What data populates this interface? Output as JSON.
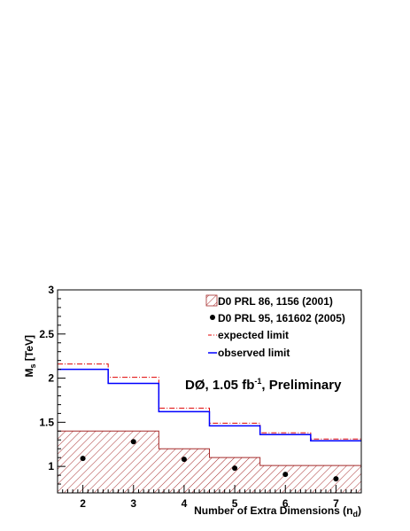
{
  "chart_data": {
    "type": "step",
    "xlabel_main": "Number of Extra Dimensions (n",
    "xlabel_sub": "d",
    "xlabel_close": ")",
    "ylabel_main": "M",
    "ylabel_sub": "s",
    "ylabel_unit": " [TeV]",
    "xlim": [
      1.5,
      7.5
    ],
    "ylim": [
      0.7,
      3.0
    ],
    "x_ticks": [
      "2",
      "3",
      "4",
      "5",
      "6",
      "7"
    ],
    "y_ticks": [
      "1",
      "1.5",
      "2",
      "2.5",
      "3"
    ],
    "annotation_main": "DØ, 1.05 fb",
    "annotation_sup": "-1",
    "annotation_tail": ", Preliminary",
    "legend": [
      {
        "label": "D0 PRL 86, 1156 (2001)",
        "style": "hatched-box"
      },
      {
        "label": "D0 PRL 95, 161602 (2005)",
        "style": "marker"
      },
      {
        "label": "expected limit",
        "style": "dashdot-red"
      },
      {
        "label": "observed limit",
        "style": "solid-blue"
      }
    ],
    "x": [
      2,
      3,
      4,
      5,
      6,
      7
    ],
    "series": [
      {
        "name": "D0 PRL 86, 1156 (2001)",
        "kind": "hatched-step",
        "color": "#a52a2a",
        "values": [
          1.4,
          1.4,
          1.2,
          1.1,
          1.01,
          1.01
        ]
      },
      {
        "name": "D0 PRL 95, 161602 (2005)",
        "kind": "points",
        "color": "#000000",
        "values": [
          1.09,
          1.28,
          1.08,
          0.98,
          0.91,
          0.86
        ]
      },
      {
        "name": "expected limit",
        "kind": "step-dashdot",
        "color": "#e00000",
        "values": [
          2.16,
          2.01,
          1.66,
          1.49,
          1.38,
          1.31
        ]
      },
      {
        "name": "observed limit",
        "kind": "step-solid",
        "color": "#0000ff",
        "values": [
          2.1,
          1.94,
          1.62,
          1.46,
          1.36,
          1.29
        ]
      }
    ]
  }
}
